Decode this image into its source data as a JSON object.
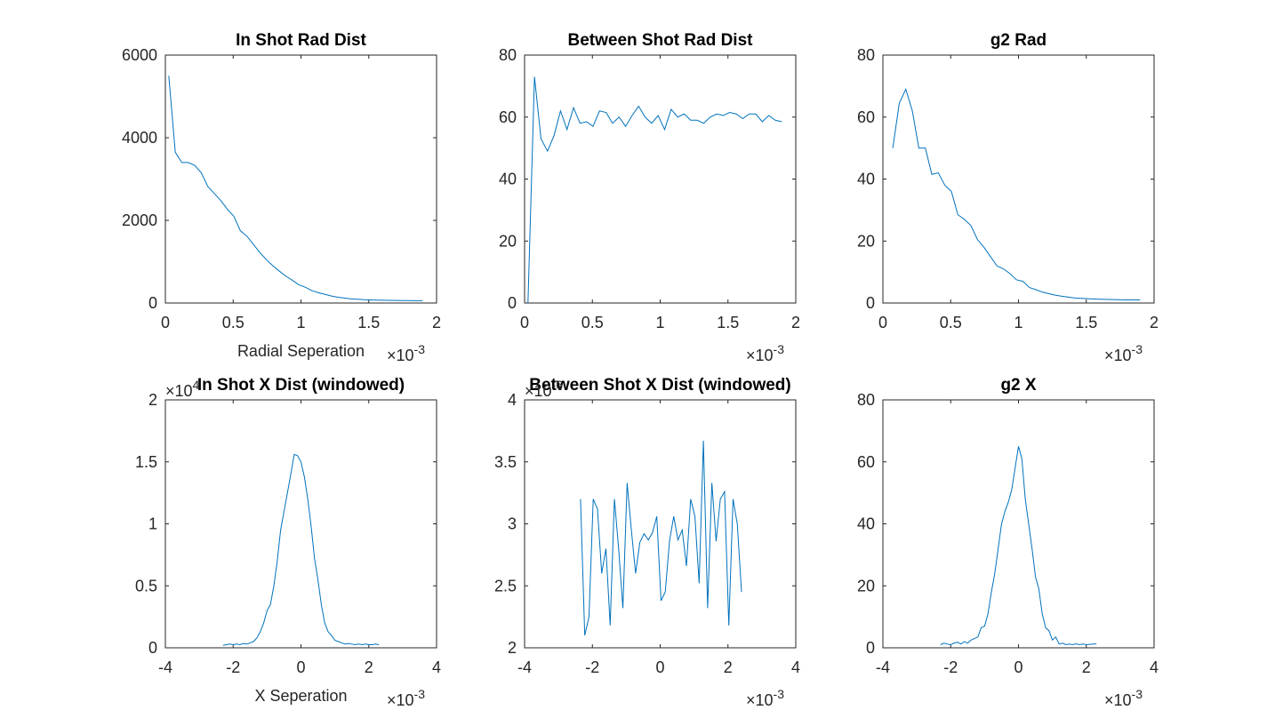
{
  "chart_data": [
    {
      "type": "line",
      "title": "In Shot Rad Dist",
      "x_label": "Radial Seperation",
      "color": "#0072bd",
      "x_multiplier": {
        "base": "×10",
        "exponent": "-3"
      },
      "xlim": [
        0,
        2
      ],
      "xticks": [
        0,
        0.5,
        1,
        1.5,
        2
      ],
      "ylim": [
        0,
        6000
      ],
      "yticks": [
        0,
        2000,
        4000,
        6000
      ],
      "x": [
        0.025,
        0.073,
        0.121,
        0.169,
        0.217,
        0.265,
        0.313,
        0.361,
        0.409,
        0.457,
        0.505,
        0.553,
        0.601,
        0.649,
        0.697,
        0.745,
        0.793,
        0.841,
        0.889,
        0.937,
        0.985,
        1.033,
        1.081,
        1.129,
        1.177,
        1.225,
        1.273,
        1.321,
        1.369,
        1.417,
        1.465,
        1.513,
        1.561,
        1.609,
        1.657,
        1.705,
        1.753,
        1.801,
        1.849,
        1.897
      ],
      "values": [
        5500,
        3650,
        3400,
        3400,
        3330,
        3150,
        2820,
        2650,
        2480,
        2270,
        2100,
        1750,
        1620,
        1420,
        1220,
        1050,
        900,
        770,
        650,
        550,
        440,
        380,
        300,
        250,
        210,
        170,
        140,
        120,
        100,
        90,
        80,
        75,
        70,
        68,
        65,
        62,
        60,
        58,
        57,
        56
      ]
    },
    {
      "type": "line",
      "title": "Between Shot Rad Dist",
      "color": "#0072bd",
      "x_multiplier": {
        "base": "×10",
        "exponent": "-3"
      },
      "xlim": [
        0,
        2
      ],
      "xticks": [
        0,
        0.5,
        1,
        1.5,
        2
      ],
      "ylim": [
        0,
        80
      ],
      "yticks": [
        0,
        20,
        40,
        60,
        80
      ],
      "x": [
        0.025,
        0.073,
        0.121,
        0.169,
        0.217,
        0.265,
        0.313,
        0.361,
        0.409,
        0.457,
        0.505,
        0.553,
        0.601,
        0.649,
        0.697,
        0.745,
        0.793,
        0.841,
        0.889,
        0.937,
        0.985,
        1.033,
        1.081,
        1.129,
        1.177,
        1.225,
        1.273,
        1.321,
        1.369,
        1.417,
        1.465,
        1.513,
        1.561,
        1.609,
        1.657,
        1.705,
        1.753,
        1.801,
        1.849,
        1.897
      ],
      "values": [
        0,
        73,
        53,
        49,
        54,
        62,
        56,
        63,
        58,
        58.5,
        57,
        62,
        61.5,
        58,
        60,
        57,
        60.5,
        63.5,
        60,
        58,
        60.5,
        56,
        62.5,
        60,
        61,
        59,
        59,
        58,
        60,
        61,
        60.5,
        61.5,
        61,
        59.5,
        61,
        61,
        58.5,
        60.5,
        59,
        58.5
      ]
    },
    {
      "type": "line",
      "title": "g2 Rad",
      "color": "#0072bd",
      "x_multiplier": {
        "base": "×10",
        "exponent": "-3"
      },
      "xlim": [
        0,
        2
      ],
      "xticks": [
        0,
        0.5,
        1,
        1.5,
        2
      ],
      "ylim": [
        0,
        80
      ],
      "yticks": [
        0,
        20,
        40,
        60,
        80
      ],
      "x": [
        0.073,
        0.121,
        0.169,
        0.217,
        0.265,
        0.313,
        0.361,
        0.409,
        0.457,
        0.505,
        0.553,
        0.601,
        0.649,
        0.697,
        0.745,
        0.793,
        0.841,
        0.889,
        0.937,
        0.985,
        1.033,
        1.081,
        1.129,
        1.177,
        1.225,
        1.273,
        1.321,
        1.369,
        1.417,
        1.465,
        1.513,
        1.561,
        1.609,
        1.657,
        1.705,
        1.753,
        1.801,
        1.849,
        1.897
      ],
      "values": [
        50,
        64.5,
        69,
        62,
        50,
        50,
        41.5,
        42,
        38,
        36,
        28.5,
        27,
        25,
        20.5,
        18,
        15,
        12,
        11,
        9.5,
        7.5,
        7,
        5,
        4.3,
        3.5,
        3,
        2.5,
        2.2,
        1.9,
        1.6,
        1.5,
        1.4,
        1.3,
        1.2,
        1.15,
        1.1,
        1.05,
        1.0,
        1.0,
        1.0
      ]
    },
    {
      "type": "line",
      "title": "In Shot X Dist (windowed)",
      "x_label": "X Seperation",
      "color": "#0072bd",
      "x_multiplier": {
        "base": "×10",
        "exponent": "-3"
      },
      "y_multiplier": {
        "base": "×10",
        "exponent": "4"
      },
      "xlim": [
        -4,
        4
      ],
      "xticks": [
        -4,
        -2,
        0,
        2,
        4
      ],
      "ylim": [
        0,
        2
      ],
      "yticks": [
        0,
        0.5,
        1,
        1.5,
        2
      ],
      "x": [
        -2.3,
        -2.2,
        -2.1,
        -2.0,
        -1.9,
        -1.8,
        -1.7,
        -1.6,
        -1.5,
        -1.4,
        -1.3,
        -1.2,
        -1.1,
        -1.0,
        -0.9,
        -0.8,
        -0.7,
        -0.6,
        -0.5,
        -0.4,
        -0.3,
        -0.2,
        -0.1,
        0,
        0.1,
        0.2,
        0.3,
        0.4,
        0.5,
        0.6,
        0.7,
        0.8,
        0.9,
        1.0,
        1.1,
        1.2,
        1.3,
        1.4,
        1.5,
        1.6,
        1.7,
        1.8,
        1.9,
        2.0,
        2.1,
        2.2,
        2.3
      ],
      "values": [
        0.02,
        0.025,
        0.03,
        0.025,
        0.03,
        0.025,
        0.035,
        0.03,
        0.04,
        0.05,
        0.08,
        0.13,
        0.2,
        0.3,
        0.35,
        0.5,
        0.7,
        0.95,
        1.1,
        1.25,
        1.4,
        1.56,
        1.55,
        1.5,
        1.38,
        1.2,
        0.98,
        0.72,
        0.55,
        0.35,
        0.2,
        0.13,
        0.1,
        0.06,
        0.05,
        0.04,
        0.03,
        0.035,
        0.03,
        0.025,
        0.03,
        0.025,
        0.03,
        0.025,
        0.025,
        0.03,
        0.025
      ]
    },
    {
      "type": "line",
      "title": "Between Shot X Dist (windowed)",
      "color": "#0072bd",
      "x_multiplier": {
        "base": "×10",
        "exponent": "-3"
      },
      "y_multiplier": {
        "base": "×10",
        "exponent": "-6"
      },
      "xlim": [
        -4,
        4
      ],
      "xticks": [
        -4,
        -2,
        0,
        2,
        4
      ],
      "ylim": [
        2,
        4
      ],
      "yticks": [
        2,
        2.5,
        3,
        3.5,
        4
      ],
      "x": [
        -2.35,
        -2.225,
        -2.1,
        -1.975,
        -1.85,
        -1.725,
        -1.6,
        -1.475,
        -1.35,
        -1.225,
        -1.1,
        -0.975,
        -0.85,
        -0.725,
        -0.6,
        -0.475,
        -0.35,
        -0.225,
        -0.1,
        0.025,
        0.15,
        0.275,
        0.4,
        0.525,
        0.65,
        0.775,
        0.9,
        1.025,
        1.15,
        1.275,
        1.4,
        1.525,
        1.65,
        1.775,
        1.9,
        2.025,
        2.15,
        2.275,
        2.4
      ],
      "values": [
        3.2,
        2.1,
        2.25,
        3.2,
        3.12,
        2.6,
        2.8,
        2.18,
        3.2,
        2.8,
        2.32,
        3.33,
        2.95,
        2.6,
        2.85,
        2.92,
        2.87,
        2.93,
        3.06,
        2.38,
        2.45,
        2.86,
        3.06,
        2.87,
        2.95,
        2.66,
        3.2,
        3.06,
        2.52,
        3.67,
        2.32,
        3.33,
        2.86,
        3.2,
        3.26,
        2.18,
        3.2,
        3.0,
        2.45
      ]
    },
    {
      "type": "line",
      "title": "g2 X",
      "color": "#0072bd",
      "x_multiplier": {
        "base": "×10",
        "exponent": "-3"
      },
      "xlim": [
        -4,
        4
      ],
      "xticks": [
        -4,
        -2,
        0,
        2,
        4
      ],
      "ylim": [
        0,
        80
      ],
      "yticks": [
        0,
        20,
        40,
        60,
        80
      ],
      "x": [
        -2.3,
        -2.2,
        -2.1,
        -2.0,
        -1.9,
        -1.8,
        -1.7,
        -1.6,
        -1.5,
        -1.4,
        -1.3,
        -1.2,
        -1.1,
        -1.0,
        -0.9,
        -0.8,
        -0.7,
        -0.6,
        -0.5,
        -0.4,
        -0.3,
        -0.2,
        -0.1,
        0,
        0.1,
        0.2,
        0.3,
        0.4,
        0.5,
        0.6,
        0.7,
        0.8,
        0.9,
        1.0,
        1.1,
        1.2,
        1.3,
        1.4,
        1.5,
        1.6,
        1.7,
        1.8,
        1.9,
        2.0,
        2.1,
        2.2,
        2.3
      ],
      "values": [
        1,
        1.5,
        1.2,
        1,
        1.5,
        1.8,
        1.2,
        2,
        1.5,
        2.5,
        3,
        3.5,
        6.5,
        7,
        11,
        18,
        24,
        32,
        40,
        44,
        47,
        51,
        58,
        65,
        61,
        48,
        40,
        32,
        23,
        19,
        11,
        6.5,
        5.5,
        2.5,
        3.5,
        1.2,
        1.5,
        1,
        1.2,
        1,
        1.3,
        1,
        1.2,
        1,
        1.1,
        1.2,
        1.3
      ]
    }
  ]
}
